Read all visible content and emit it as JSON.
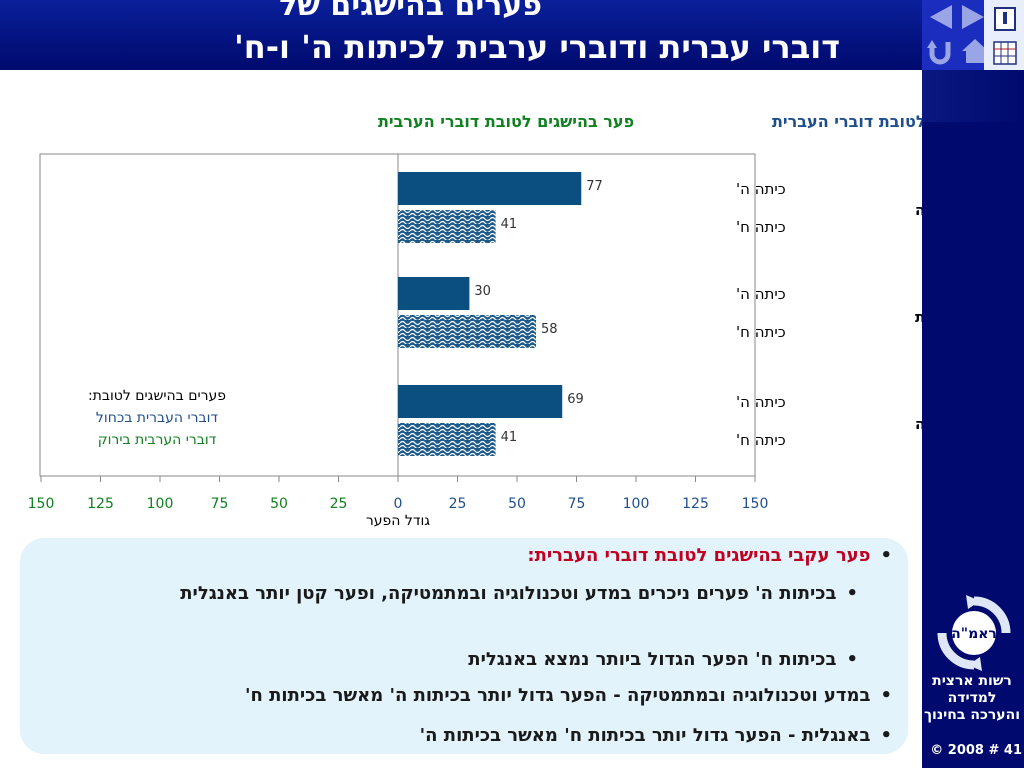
{
  "header": {
    "title_line1": "פערים בהישגים של",
    "title_line2": "דוברי עברית ודוברי ערבית לכיתות ה' ו-ח'"
  },
  "nav": {
    "icons": [
      "back-arrow-icon",
      "forward-arrow-icon",
      "return-icon",
      "home-icon",
      "info-icon",
      "grid-icon"
    ]
  },
  "chart_data": {
    "type": "bar",
    "orientation": "horizontal",
    "header_right": "פער בהישגים לטובת דוברי העברית",
    "header_left": "פער בהישגים לטובת דוברי הערבית",
    "xlabel": "גודל הפער",
    "xlim": [
      -150,
      150
    ],
    "x_ticks_left": [
      "150",
      "125",
      "100",
      "75",
      "50",
      "25"
    ],
    "x_ticks_right": [
      "0",
      "25",
      "50",
      "75",
      "100",
      "125",
      "150"
    ],
    "groups": [
      {
        "name": "מדע וטכנולוגיה",
        "bars": [
          {
            "grade": "כיתה ה'",
            "value": 77
          },
          {
            "grade": "כיתה ח'",
            "value": 41
          }
        ]
      },
      {
        "name": "אנגלית",
        "bars": [
          {
            "grade": "כיתה ה'",
            "value": 30
          },
          {
            "grade": "כיתה ח'",
            "value": 58
          }
        ]
      },
      {
        "name": "מתמטיקה",
        "bars": [
          {
            "grade": "כיתה ה'",
            "value": 69
          },
          {
            "grade": "כיתה ח'",
            "value": 41
          }
        ]
      }
    ],
    "legend": {
      "title": "פערים בהישגים לטובת:",
      "hebrew": "דוברי העברית בכחול",
      "arabic": "דוברי הערבית בירוק"
    },
    "colors": {
      "grade5": "#0b4f80",
      "grade8_pattern": "#1d5a8c",
      "blue_text": "#1f4e8c",
      "green_text": "#108020"
    },
    "grid": false
  },
  "notes": {
    "item1": "פער עקבי בהישגים לטובת דוברי העברית:",
    "sub1": "בכיתות ה' פערים ניכרים במדע וטכנולוגיה ובמתמטיקה, ופער קטן יותר באנגלית",
    "sub2": "בכיתות ח' הפער הגדול ביותר נמצא באנגלית",
    "item2": "במדע וטכנולוגיה ובמתמטיקה - הפער גדול יותר בכיתות ה' מאשר בכיתות ח'",
    "item3": "באנגלית - הפער גדול יותר בכיתות ח' מאשר בכיתות ה'"
  },
  "org": {
    "logo_text": "ראמ\"ה",
    "name": "רשות ארצית למדידה והערכה בחינוך",
    "slide_number": "© 2008 # 41"
  }
}
